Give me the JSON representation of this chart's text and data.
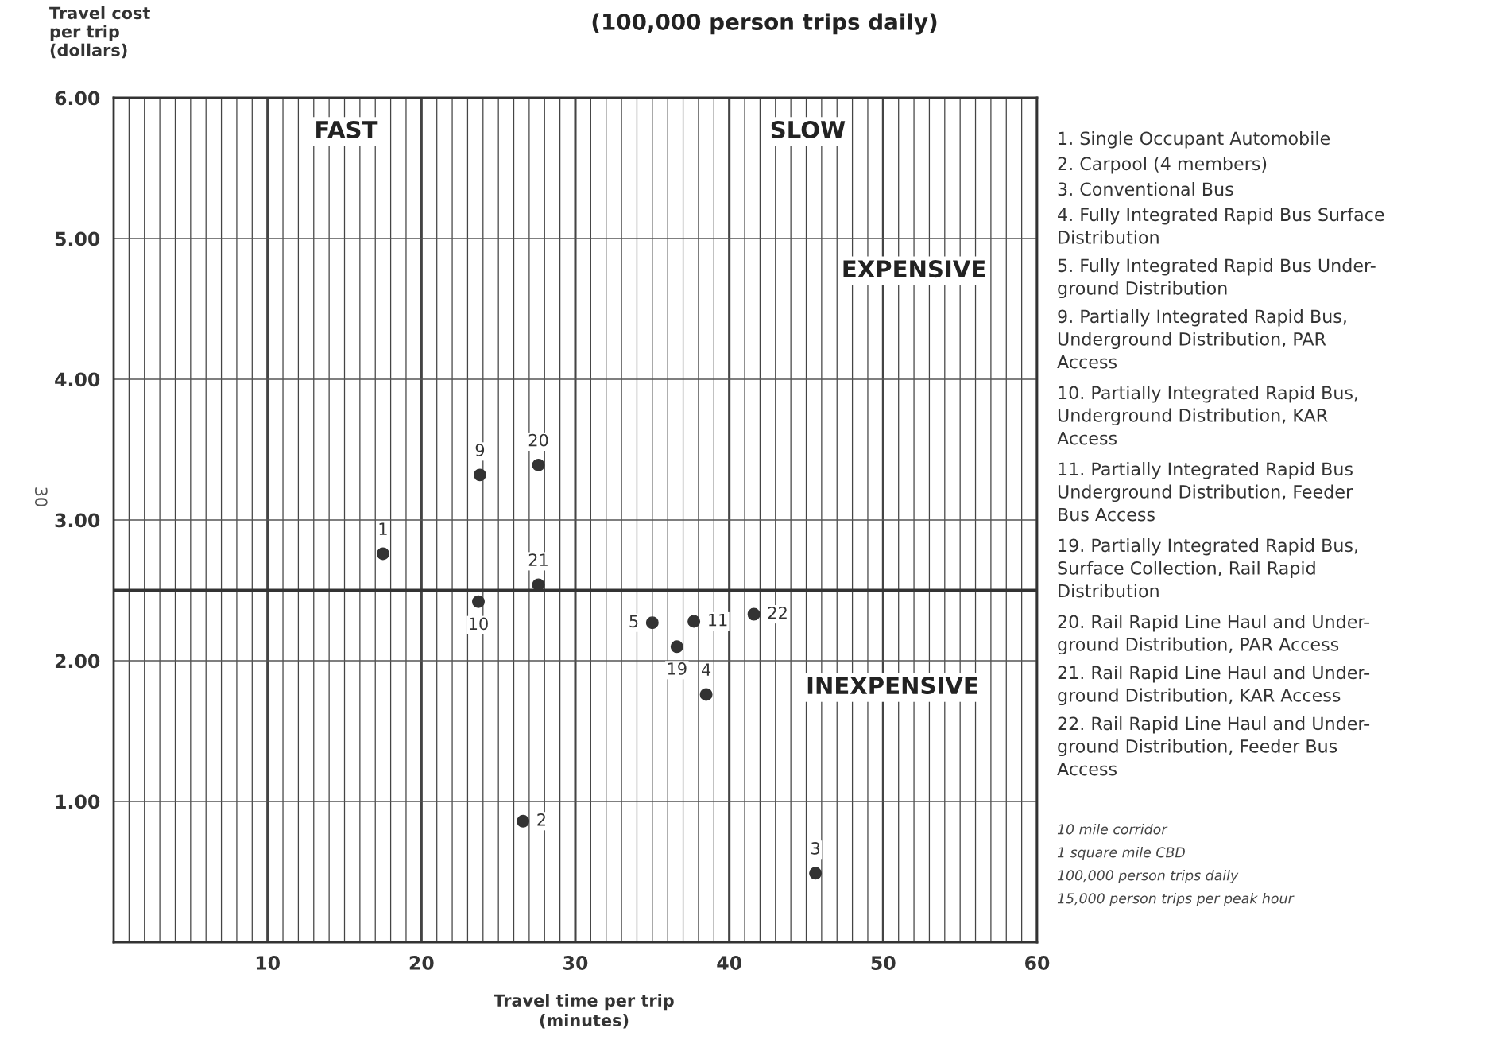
{
  "chart_data": {
    "type": "scatter",
    "title": "(100,000 person trips daily)",
    "xlabel": "Travel time per trip\n(minutes)",
    "ylabel": "Travel cost\nper trip\n(dollars)",
    "x": [
      17.5,
      26.6,
      45.6,
      38.5,
      35.0,
      23.8,
      23.7,
      37.7,
      36.6,
      27.6,
      27.6,
      41.6
    ],
    "series": [
      {
        "color": "#333333",
        "values": [
          2.76,
          0.86,
          0.49,
          1.76,
          2.27,
          3.32,
          2.42,
          2.28,
          2.1,
          3.39,
          2.54,
          2.33
        ]
      }
    ],
    "marker": "circle",
    "xlim": [
      0,
      60
    ],
    "xticks": [
      {
        "value": 1,
        "label": null
      },
      {
        "value": 2,
        "label": null
      },
      {
        "value": 3,
        "label": null
      },
      {
        "value": 4,
        "label": null
      },
      {
        "value": 5,
        "label": null
      },
      {
        "value": 6,
        "label": null
      },
      {
        "value": 7,
        "label": null
      },
      {
        "value": 8,
        "label": null
      },
      {
        "value": 9,
        "label": null
      },
      10,
      {
        "value": 11,
        "label": null
      },
      {
        "value": 12,
        "label": null
      },
      {
        "value": 13,
        "label": null
      },
      {
        "value": 14,
        "label": null
      },
      {
        "value": 15,
        "label": null
      },
      {
        "value": 16,
        "label": null
      },
      {
        "value": 17,
        "label": null
      },
      {
        "value": 18,
        "label": null
      },
      {
        "value": 19,
        "label": null
      },
      20,
      {
        "value": 21,
        "label": null
      },
      {
        "value": 22,
        "label": null
      },
      {
        "value": 23,
        "label": null
      },
      {
        "value": 24,
        "label": null
      },
      {
        "value": 25,
        "label": null
      },
      {
        "value": 26,
        "label": null
      },
      {
        "value": 27,
        "label": null
      },
      {
        "value": 28,
        "label": null
      },
      {
        "value": 29,
        "label": null
      },
      30,
      {
        "value": 31,
        "label": null
      },
      {
        "value": 32,
        "label": null
      },
      {
        "value": 33,
        "label": null
      },
      {
        "value": 34,
        "label": null
      },
      {
        "value": 35,
        "label": null
      },
      {
        "value": 36,
        "label": null
      },
      {
        "value": 37,
        "label": null
      },
      {
        "value": 38,
        "label": null
      },
      {
        "value": 39,
        "label": null
      },
      40,
      {
        "value": 41,
        "label": null
      },
      {
        "value": 42,
        "label": null
      },
      {
        "value": 43,
        "label": null
      },
      {
        "value": 44,
        "label": null
      },
      {
        "value": 45,
        "label": null
      },
      {
        "value": 46,
        "label": null
      },
      {
        "value": 47,
        "label": null
      },
      {
        "value": 48,
        "label": null
      },
      {
        "value": 49,
        "label": null
      },
      50,
      {
        "value": 51,
        "label": null
      },
      {
        "value": 52,
        "label": null
      },
      {
        "value": 53,
        "label": null
      },
      {
        "value": 54,
        "label": null
      },
      {
        "value": 55,
        "label": null
      },
      {
        "value": 56,
        "label": null
      },
      {
        "value": 57,
        "label": null
      },
      {
        "value": 58,
        "label": null
      },
      {
        "value": 59,
        "label": null
      },
      60
    ],
    "ylim": [
      0,
      6
    ],
    "yticks": [
      {
        "value": 1,
        "label": "1.00"
      },
      {
        "value": 2,
        "label": "2.00"
      },
      {
        "value": 3,
        "label": "3.00"
      },
      {
        "value": 4,
        "label": "4.00"
      },
      {
        "value": 5,
        "label": "5.00"
      },
      {
        "value": 6,
        "label": "6.00"
      }
    ],
    "grid": true,
    "ref_lines": [
      {
        "axis": "y",
        "value": 2.5,
        "color": "#333333"
      }
    ],
    "annotations": [
      "FAST",
      "SLOW",
      "EXPENSIVE",
      "INEXPENSIVE",
      "1. Single Occupant Automobile",
      "2. Carpool (4 members)",
      "3. Conventional Bus",
      "4. Fully Integrated Rapid Bus Surface\nDistribution",
      "5. Fully Integrated Rapid Bus Under-\nground Distribution",
      "9. Partially Integrated Rapid Bus,\nUnderground Distribution, PAR\nAccess",
      "10. Partially Integrated Rapid Bus,\nUnderground Distribution, KAR\nAccess",
      "11. Partially Integrated Rapid Bus\nUnderground Distribution, Feeder\nBus Access",
      "19. Partially Integrated Rapid Bus,\nSurface Collection, Rail Rapid\nDistribution",
      "20. Rail Rapid Line Haul and Under-\nground Distribution, PAR Access",
      "21. Rail Rapid Line Haul and Under-\nground Distribution, KAR Access",
      "22. Rail Rapid Line Haul and Under-\nground Distribution, Feeder Bus\nAccess",
      "10 mile corridor",
      "1 square mile CBD",
      "100,000 person trips daily",
      "15,000 person trips per peak hour",
      "30",
      {
        "text": "1",
        "x": 17.5,
        "y": 2.76
      },
      {
        "text": "2",
        "x": 26.6,
        "y": 0.86
      },
      {
        "text": "3",
        "x": 45.6,
        "y": 0.49
      },
      {
        "text": "4",
        "x": 38.5,
        "y": 1.76
      },
      {
        "text": "5",
        "x": 35.0,
        "y": 2.27
      },
      {
        "text": "9",
        "x": 23.8,
        "y": 3.32
      },
      {
        "text": "10",
        "x": 23.7,
        "y": 2.42
      },
      {
        "text": "11",
        "x": 37.7,
        "y": 2.28
      },
      {
        "text": "19",
        "x": 36.6,
        "y": 2.1
      },
      {
        "text": "20",
        "x": 27.6,
        "y": 3.39
      },
      {
        "text": "21",
        "x": 27.6,
        "y": 2.54
      },
      {
        "text": "22",
        "x": 41.6,
        "y": 2.33
      }
    ]
  }
}
